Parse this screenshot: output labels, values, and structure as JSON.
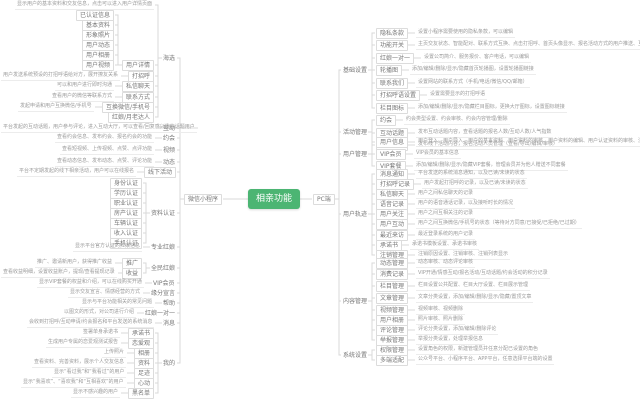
{
  "app": {
    "type": "mind-map",
    "background": "#ffffff",
    "line_color": "#d8d8d8",
    "accent_color": "#4cb573"
  },
  "center": {
    "label": "相亲功能"
  },
  "node_fields": [
    "id",
    "parent",
    "label",
    "y_center",
    "style(b=box,p=plain,n=note)",
    "gap(optional)",
    "side(optional L/R)"
  ],
  "nodes": [
    [
      "wx",
      "center",
      "微信小程序",
      199,
      "b",
      26,
      "L"
    ],
    [
      "hx",
      "wx",
      "海选",
      58,
      "p"
    ],
    [
      "hd",
      "wx",
      "互动",
      128,
      "p"
    ],
    [
      "yh",
      "wx",
      "约会",
      138,
      "p"
    ],
    [
      "sp",
      "wx",
      "视频",
      150,
      "p"
    ],
    [
      "dt",
      "wx",
      "动态",
      162,
      "p"
    ],
    [
      "xxhd",
      "wx",
      "线下活动",
      172,
      "b"
    ],
    [
      "zlrz",
      "wx",
      "资料认证",
      213,
      "p"
    ],
    [
      "zyhn",
      "wx",
      "专业红娘",
      247,
      "p"
    ],
    [
      "qmhn",
      "wx",
      "全民红娘",
      268,
      "p"
    ],
    [
      "vip",
      "wx",
      "VIP会员",
      283,
      "p"
    ],
    [
      "yfxy",
      "wx",
      "缘分宣言",
      293,
      "p"
    ],
    [
      "bz",
      "wx",
      "帮助",
      303,
      "p"
    ],
    [
      "hnydy",
      "wx",
      "红娘一对一",
      313,
      "p"
    ],
    [
      "xx",
      "wx",
      "消息",
      323,
      "p"
    ],
    [
      "wd",
      "wx",
      "我的",
      363,
      "p"
    ],
    [
      "hx-note",
      "hx",
      "显示用户的基本资料和交友信息，点击可以进入用户详情页面",
      5,
      "n"
    ],
    [
      "yhxq",
      "hx",
      "用户详情",
      65,
      "b"
    ],
    [
      "dzh",
      "hx",
      "打招呼",
      76,
      "b"
    ],
    [
      "sxlt",
      "hx",
      "私信聊天",
      86,
      "b"
    ],
    [
      "lxfs",
      "hx",
      "联系方式",
      97,
      "b"
    ],
    [
      "hhwx",
      "hx",
      "互换微信/手机号",
      107,
      "b"
    ],
    [
      "hnlr",
      "hx",
      "红娘/月老达人",
      117,
      "b"
    ],
    [
      "yrzxx",
      "yhxq",
      "已认证信息",
      15,
      "b"
    ],
    [
      "jbzl",
      "yhxq",
      "基本资料",
      25,
      "b"
    ],
    [
      "xxzp",
      "yhxq",
      "形象照片",
      35,
      "b"
    ],
    [
      "yhdt",
      "yhxq",
      "用户动态",
      45,
      "b"
    ],
    [
      "yhxc",
      "yhxq",
      "用户相册",
      55,
      "b"
    ],
    [
      "yhspp",
      "yhxq",
      "用户视频",
      65,
      "b"
    ],
    [
      "dzh-note",
      "dzh",
      "用户发送系统预设的打招呼语给对方，展开撩友关系",
      76,
      "n"
    ],
    [
      "sxlt-note",
      "sxlt",
      "可以和用户进行即时沟通",
      86,
      "n"
    ],
    [
      "lxfs-note",
      "lxfs",
      "查看用户的微信等联系方式",
      97,
      "n"
    ],
    [
      "hhwx-note",
      "hhwx",
      "发起申请和用户互换微信/手机号",
      107,
      "n"
    ],
    [
      "hd-note",
      "hd",
      "平台发起的互动话题，用户参与评论，进入互动大厅，可以查看/回复感兴趣的话题用户",
      128,
      "n"
    ],
    [
      "yh-note",
      "yh",
      "查看约会信息、发布约会、报名约会的功能",
      138,
      "n"
    ],
    [
      "sp-note",
      "sp",
      "查看短视频、上传视频、点赞、点评功能",
      150,
      "n"
    ],
    [
      "dt-note",
      "dt",
      "查看动态信息、发布动态、点赞、评论功能",
      162,
      "n"
    ],
    [
      "xxhd-note",
      "xxhd",
      "平台不定期发起的线下相亲活动，用户可以在线报名",
      172,
      "n"
    ],
    [
      "sfrz",
      "zlrz",
      "身份认证",
      183,
      "b"
    ],
    [
      "xlrz",
      "zlrz",
      "学历认证",
      193,
      "b"
    ],
    [
      "zyrz",
      "zlrz",
      "职业认证",
      203,
      "b"
    ],
    [
      "fcrz",
      "zlrz",
      "房产认证",
      213,
      "b"
    ],
    [
      "clrz",
      "zlrz",
      "车辆认证",
      223,
      "b"
    ],
    [
      "srrz",
      "zlrz",
      "收入认证",
      233,
      "b"
    ],
    [
      "sjrz",
      "zlrz",
      "手机认证",
      243,
      "b"
    ],
    [
      "zyhn-note",
      "zyhn",
      "显示平台官方认证的红娘信息",
      247,
      "n"
    ],
    [
      "tg",
      "qmhn",
      "推广",
      263,
      "b"
    ],
    [
      "sy",
      "qmhn",
      "收益",
      273,
      "b"
    ],
    [
      "tg-note",
      "tg",
      "推广、邀请新用户，获得推广收益",
      263,
      "n"
    ],
    [
      "sy-note",
      "sy",
      "查看收益明细，设置收益账户，提现/查看提现记录",
      273,
      "n"
    ],
    [
      "vip-note",
      "vip",
      "显示VIP套餐的权益和介绍，可以在线购买开通",
      283,
      "n"
    ],
    [
      "yfxy-note",
      "yfxy",
      "显示交友宣言、情感经营的方式",
      293,
      "n"
    ],
    [
      "bz-note",
      "bz",
      "显示与平台功能相关的常见问题",
      303,
      "n"
    ],
    [
      "hnydy-note",
      "hnydy",
      "以图文的形式，对公司进行介绍",
      313,
      "n"
    ],
    [
      "xx-note",
      "xx",
      "会收到打招呼/互动申请/约会报名和平台发送的系统消息",
      323,
      "n"
    ],
    [
      "cns",
      "wd",
      "承诺书",
      333,
      "b"
    ],
    [
      "lag",
      "wd",
      "恋爱观",
      343,
      "b"
    ],
    [
      "xc2",
      "wd",
      "相册",
      353,
      "b"
    ],
    [
      "zl2",
      "wd",
      "资料",
      363,
      "b"
    ],
    [
      "zj",
      "wd",
      "足迹",
      373,
      "b"
    ],
    [
      "xd",
      "wd",
      "心动",
      383,
      "b"
    ],
    [
      "hmd",
      "wd",
      "黑名单",
      393,
      "b"
    ],
    [
      "cns-note",
      "cns",
      "签署单身承诺书",
      333,
      "n"
    ],
    [
      "lag-note",
      "lag",
      "生成用户专属的恋爱观测试报告",
      343,
      "n"
    ],
    [
      "xc2-note",
      "xc2",
      "上传照片",
      353,
      "n"
    ],
    [
      "zl2-note",
      "zl2",
      "查看资料、完善资料，展示个人交友信息",
      363,
      "n"
    ],
    [
      "zj-note",
      "zj",
      "显示“看过我”和“我看过”的用户",
      373,
      "n"
    ],
    [
      "xd-note",
      "xd",
      "显示“我喜欢”、“喜欢我”和“互相喜欢”的用户",
      383,
      "n"
    ],
    [
      "hmd-note",
      "hmd",
      "显示不感兴趣的用户",
      393,
      "n"
    ],
    [
      "pc",
      "center",
      "PC端",
      199,
      "b",
      13,
      "R"
    ],
    [
      "jcsz",
      "pc",
      "基础设置",
      70,
      "p",
      7
    ],
    [
      "hdgl",
      "pc",
      "活动管理",
      132,
      "p",
      7
    ],
    [
      "yhgl",
      "pc",
      "用户管理",
      154,
      "p",
      7
    ],
    [
      "yhgj",
      "pc",
      "用户轨迹",
      214,
      "p",
      7
    ],
    [
      "nrgl",
      "pc",
      "内容管理",
      301,
      "p",
      7
    ],
    [
      "xtsz",
      "pc",
      "系统设置",
      355,
      "p",
      7
    ],
    [
      "ystk",
      "jcsz",
      "隐私条款",
      33,
      "b"
    ],
    [
      "gnkg",
      "jcsz",
      "功能开关",
      45,
      "b"
    ],
    [
      "hn11",
      "jcsz",
      "红娘一对一",
      58,
      "b"
    ],
    [
      "lbt",
      "jcsz",
      "轮播图",
      70,
      "b"
    ],
    [
      "lxwm",
      "jcsz",
      "联系我们",
      83,
      "b"
    ],
    [
      "dzhy",
      "jcsz",
      "打招呼语设置",
      95,
      "b"
    ],
    [
      "lmtb",
      "jcsz",
      "栏目图标",
      108,
      "b"
    ],
    [
      "ystk-note",
      "ystk",
      "设置小程序需要使用的隐私条款，可以编辑",
      33,
      "n"
    ],
    [
      "gnkg-note",
      "gnkg",
      "主页交友状态、智能配对、联系方式互换、点击打招呼、首页头像显示、报名活动方式的用户推送、互换联系方式和查看推荐中奖的设置",
      45,
      "n"
    ],
    [
      "hn11-note",
      "hn11",
      "设置公司简介、服务报价、客户电话，可以编辑",
      58,
      "n"
    ],
    [
      "lbt-note",
      "lbt",
      "添加/编辑/删除/显示/隐藏首页轮播图，设置轮播图链接",
      70,
      "n"
    ],
    [
      "lxwm-note",
      "lxwm",
      "设置网站的联系方式（手机/电话/微信/QQ/邮箱）",
      83,
      "n"
    ],
    [
      "dzhy-note",
      "dzhy",
      "设置需要显示的打招呼语",
      95,
      "n"
    ],
    [
      "lmtb-note",
      "lmtb",
      "添加/编辑/删除/显示/隐藏栏目图标，更换大厅图标，设置图标链接",
      108,
      "n"
    ],
    [
      "yh2",
      "hdgl",
      "约会",
      120,
      "b"
    ],
    [
      "hdht",
      "hdgl",
      "互动话题",
      133,
      "b"
    ],
    [
      "xxhd2",
      "hdgl",
      "线下活动",
      145,
      "b"
    ],
    [
      "yh2-note",
      "yh2",
      "约会类型设置、约会审核、约会内容管理/删除",
      120,
      "n"
    ],
    [
      "hdht-note",
      "hdht",
      "发布互动话题内容，查看话题的报名人数/互动人数/人气指数",
      133,
      "n"
    ],
    [
      "xxhd2-note",
      "xxhd2",
      "发布线下活动内容，报名活动人员管理（查看/导出/编辑/审核）",
      145,
      "n"
    ],
    [
      "yhxx",
      "yhgl",
      "用户信息",
      142,
      "b"
    ],
    [
      "vip2",
      "yhgl",
      "VIP会员",
      154,
      "b"
    ],
    [
      "viptc",
      "yhgl",
      "VIP套餐",
      166,
      "b"
    ],
    [
      "yhxx-note",
      "yhxx",
      "用户登入、用户导入、用户的基本资料、用户资料的审核、用户资料的编辑、用户认证资料的审核、注册设置等功能",
      142,
      "n"
    ],
    [
      "vip2-note",
      "vip2",
      "VIP会员的基本信息",
      154,
      "n"
    ],
    [
      "viptc-note",
      "viptc",
      "添加/编辑/删除/显示/隐藏VIP套餐，管理会员并为他人赠送不同套餐",
      166,
      "n"
    ],
    [
      "xxtz",
      "yhgj",
      "消息通知",
      174,
      "b"
    ],
    [
      "dzhjl",
      "yhgj",
      "打招呼记录",
      184,
      "b"
    ],
    [
      "sxlt2",
      "yhgj",
      "私信聊天",
      194,
      "b"
    ],
    [
      "yyjl",
      "yhgj",
      "语音记录",
      204,
      "b"
    ],
    [
      "yhgz",
      "yhgj",
      "用户关注",
      214,
      "b"
    ],
    [
      "yhhd2",
      "yhgj",
      "用户互动",
      224,
      "b"
    ],
    [
      "zjlf",
      "yhgj",
      "最近来访",
      235,
      "b"
    ],
    [
      "cns2",
      "yhgj",
      "承诺书",
      245,
      "b"
    ],
    [
      "zxgl",
      "yhgj",
      "注销管理",
      255,
      "b"
    ],
    [
      "xxtz-note",
      "xxtz",
      "平台发送的系统消息通知，以及已读/未读的状态",
      174,
      "n"
    ],
    [
      "dzhjl-note",
      "dzhjl",
      "用户发起打招呼的记录，以及已读/未读的状态",
      184,
      "n"
    ],
    [
      "sxlt2-note",
      "sxlt2",
      "用户之间私信聊天的记录",
      194,
      "n"
    ],
    [
      "yyjl-note",
      "yyjl",
      "用户的语音通话记录，以及接听时长的情况",
      204,
      "n"
    ],
    [
      "yhgz-note",
      "yhgz",
      "用户之间互相关注的记录",
      214,
      "n"
    ],
    [
      "yhhd2-note",
      "yhhd2",
      "用户之间互换微信/手机号的状态（等待对方同意/已接受/已拒绝/已过期）",
      224,
      "n"
    ],
    [
      "zjlf-note",
      "zjlf",
      "最近登录系统的用户记录",
      235,
      "n"
    ],
    [
      "cns2-note",
      "cns2",
      "承诺书模板设置、承诺书审核",
      245,
      "n"
    ],
    [
      "zxgl-note",
      "zxgl",
      "注销原因设置、注销审核、注销列表显示",
      255,
      "n"
    ],
    [
      "dtgl",
      "nrgl",
      "动态管理",
      263,
      "b"
    ],
    [
      "xfjl",
      "nrgl",
      "消费记录",
      274,
      "b"
    ],
    [
      "lmgl",
      "nrgl",
      "栏目管理",
      286,
      "b"
    ],
    [
      "wzgl",
      "nrgl",
      "文章管理",
      298,
      "b"
    ],
    [
      "spgl",
      "nrgl",
      "视频管理",
      310,
      "b"
    ],
    [
      "yhxc2",
      "nrgl",
      "用户相册",
      320,
      "b"
    ],
    [
      "plgl",
      "nrgl",
      "评论管理",
      330,
      "b"
    ],
    [
      "jbgl",
      "nrgl",
      "举报管理",
      340,
      "b"
    ],
    [
      "dtgl-note",
      "dtgl",
      "动态审核、动态评论审核",
      263,
      "n"
    ],
    [
      "xfjl-note",
      "xfjl",
      "VIP开通/情感互动/报名活动/互动话题/约会活动的积分记录",
      274,
      "n"
    ],
    [
      "lmgl-note",
      "lmgl",
      "栏目设置公共配置、栏目大厅设置、栏目展示管理",
      286,
      "n"
    ],
    [
      "wzgl-note",
      "wzgl",
      "文章分类设置，添加/编辑/删除/显示/隐藏/置顶文章",
      298,
      "n"
    ],
    [
      "spgl-note",
      "spgl",
      "视频审核、视频删除",
      310,
      "n"
    ],
    [
      "yhxc2-note",
      "yhxc2",
      "照片审核、照片删除",
      320,
      "n"
    ],
    [
      "plgl-note",
      "plgl",
      "评论分类设置，添加/编辑/删除评论",
      330,
      "n"
    ],
    [
      "jbgl-note",
      "jbgl",
      "举报分类设置，处理举报信息",
      340,
      "n"
    ],
    [
      "qxgl",
      "xtsz",
      "权限管理",
      350,
      "b"
    ],
    [
      "ddsp",
      "xtsz",
      "多端适配",
      360,
      "b"
    ],
    [
      "qxgl-note",
      "qxgl",
      "设置角色的权限，新建管理员并任意分配已设置的角色",
      350,
      "n"
    ],
    [
      "ddsp-note",
      "ddsp",
      "公众号平台、小程序平台、APP平台，任意选择平台端的设置",
      360,
      "n"
    ]
  ]
}
